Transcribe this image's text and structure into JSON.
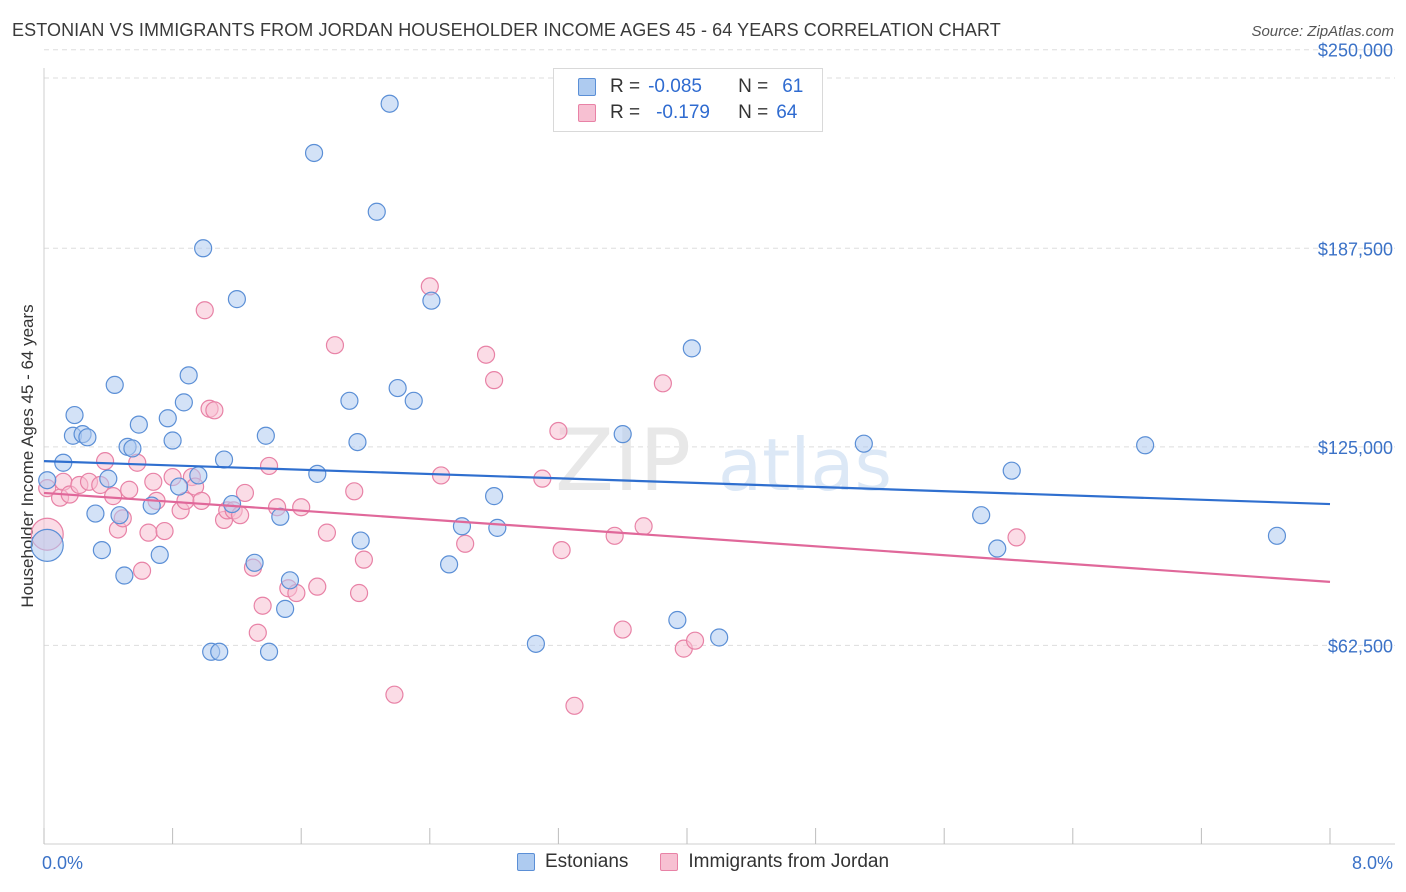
{
  "title": "ESTONIAN VS IMMIGRANTS FROM JORDAN HOUSEHOLDER INCOME AGES 45 - 64 YEARS CORRELATION CHART",
  "source": "Source: ZipAtlas.com",
  "watermark": {
    "zip": "ZIP",
    "atlas": "atlas"
  },
  "legend": {
    "rows": [
      {
        "r_label": "R =",
        "r_value": "-0.085",
        "n_label": "N =",
        "n_value": "61"
      },
      {
        "r_label": "R =",
        "r_value": "-0.179",
        "n_label": "N =",
        "n_value": "64"
      }
    ]
  },
  "colors": {
    "estonians_fill": "#aecbf0",
    "estonians_stroke": "#5b8fd6",
    "estonians_line": "#2f6fcf",
    "jordan_fill": "#f7c0d2",
    "jordan_stroke": "#e882a6",
    "jordan_line": "#e0689a",
    "tick": "#3b72c7",
    "grid": "#dddddd"
  },
  "chart_data": {
    "type": "scatter",
    "ylabel": "Householder Income Ages 45 - 64 years",
    "xlim": [
      0,
      8
    ],
    "ylim": [
      0,
      262500
    ],
    "x_tick_labels": [
      "0.0%",
      "8.0%"
    ],
    "y_ticks": [
      62500,
      125000,
      187500,
      250000
    ],
    "y_tick_labels": [
      "$62,500",
      "$125,000",
      "$187,500",
      "$250,000"
    ],
    "grid": true,
    "legend_position": "top-center",
    "series": [
      {
        "name": "Estonians",
        "r": -0.085,
        "n": 61,
        "trend": [
          [
            0.0,
            120500
          ],
          [
            8.0,
            107000
          ]
        ],
        "points": [
          [
            0.02,
            94000,
            1
          ],
          [
            0.02,
            114500,
            0
          ],
          [
            0.12,
            120000,
            0
          ],
          [
            0.18,
            128500,
            0
          ],
          [
            0.19,
            135000,
            0
          ],
          [
            0.24,
            129000,
            0
          ],
          [
            0.27,
            128000,
            0
          ],
          [
            0.32,
            104000,
            0
          ],
          [
            0.36,
            92500,
            0
          ],
          [
            0.4,
            115000,
            0
          ],
          [
            0.44,
            144500,
            0
          ],
          [
            0.47,
            103500,
            0
          ],
          [
            0.5,
            84500,
            0
          ],
          [
            0.52,
            125000,
            0
          ],
          [
            0.55,
            124500,
            0
          ],
          [
            0.59,
            132000,
            0
          ],
          [
            0.67,
            106500,
            0
          ],
          [
            0.72,
            91000,
            0
          ],
          [
            0.77,
            134000,
            0
          ],
          [
            0.8,
            127000,
            0
          ],
          [
            0.84,
            112500,
            0
          ],
          [
            0.87,
            139000,
            0
          ],
          [
            0.9,
            147500,
            0
          ],
          [
            0.96,
            116000,
            0
          ],
          [
            0.99,
            187500,
            0
          ],
          [
            1.04,
            60500,
            0
          ],
          [
            1.09,
            60500,
            0
          ],
          [
            1.12,
            121000,
            0
          ],
          [
            1.17,
            107000,
            0
          ],
          [
            1.2,
            171500,
            0
          ],
          [
            1.31,
            88500,
            0
          ],
          [
            1.38,
            128500,
            0
          ],
          [
            1.4,
            60500,
            0
          ],
          [
            1.47,
            103000,
            0
          ],
          [
            1.5,
            74000,
            0
          ],
          [
            1.53,
            83000,
            0
          ],
          [
            1.68,
            217500,
            0
          ],
          [
            1.7,
            116500,
            0
          ],
          [
            1.9,
            139500,
            0
          ],
          [
            1.95,
            126500,
            0
          ],
          [
            1.97,
            95500,
            0
          ],
          [
            2.07,
            199000,
            0
          ],
          [
            2.15,
            233000,
            0
          ],
          [
            2.2,
            143500,
            0
          ],
          [
            2.3,
            139500,
            0
          ],
          [
            2.41,
            171000,
            0
          ],
          [
            2.52,
            88000,
            0
          ],
          [
            2.6,
            100000,
            0
          ],
          [
            2.8,
            109500,
            0
          ],
          [
            2.82,
            99500,
            0
          ],
          [
            3.06,
            63000,
            0
          ],
          [
            3.6,
            129000,
            0
          ],
          [
            3.94,
            70500,
            0
          ],
          [
            4.03,
            156000,
            0
          ],
          [
            4.2,
            65000,
            0
          ],
          [
            5.1,
            126000,
            0
          ],
          [
            5.83,
            103500,
            0
          ],
          [
            5.93,
            93000,
            0
          ],
          [
            6.02,
            117500,
            0
          ],
          [
            6.85,
            125500,
            0
          ],
          [
            7.67,
            97000,
            0
          ]
        ]
      },
      {
        "name": "Immigrants from Jordan",
        "r": -0.179,
        "n": 64,
        "trend": [
          [
            0.0,
            110500
          ],
          [
            8.0,
            82500
          ]
        ],
        "points": [
          [
            0.02,
            97500,
            1
          ],
          [
            0.02,
            112000,
            0
          ],
          [
            0.1,
            109000,
            0
          ],
          [
            0.12,
            114000,
            0
          ],
          [
            0.16,
            110000,
            0
          ],
          [
            0.22,
            113000,
            0
          ],
          [
            0.28,
            114000,
            0
          ],
          [
            0.35,
            113000,
            0
          ],
          [
            0.38,
            120500,
            0
          ],
          [
            0.43,
            109500,
            0
          ],
          [
            0.46,
            99000,
            0
          ],
          [
            0.49,
            102500,
            0
          ],
          [
            0.53,
            111500,
            0
          ],
          [
            0.58,
            120000,
            0
          ],
          [
            0.61,
            86000,
            0
          ],
          [
            0.65,
            98000,
            0
          ],
          [
            0.68,
            114000,
            0
          ],
          [
            0.7,
            108000,
            0
          ],
          [
            0.75,
            98500,
            0
          ],
          [
            0.8,
            115500,
            0
          ],
          [
            0.85,
            105000,
            0
          ],
          [
            0.88,
            108000,
            0
          ],
          [
            0.92,
            115500,
            0
          ],
          [
            0.94,
            112500,
            0
          ],
          [
            0.98,
            108000,
            0
          ],
          [
            1.0,
            168000,
            0
          ],
          [
            1.03,
            137000,
            0
          ],
          [
            1.06,
            136500,
            0
          ],
          [
            1.12,
            102000,
            0
          ],
          [
            1.14,
            105000,
            0
          ],
          [
            1.18,
            105000,
            0
          ],
          [
            1.22,
            103500,
            0
          ],
          [
            1.25,
            110500,
            0
          ],
          [
            1.3,
            87000,
            0
          ],
          [
            1.33,
            66500,
            0
          ],
          [
            1.36,
            75000,
            0
          ],
          [
            1.4,
            119000,
            0
          ],
          [
            1.45,
            106000,
            0
          ],
          [
            1.52,
            80500,
            0
          ],
          [
            1.57,
            79000,
            0
          ],
          [
            1.6,
            106000,
            0
          ],
          [
            1.7,
            81000,
            0
          ],
          [
            1.76,
            98000,
            0
          ],
          [
            1.81,
            157000,
            0
          ],
          [
            1.93,
            111000,
            0
          ],
          [
            1.96,
            79000,
            0
          ],
          [
            1.99,
            89500,
            0
          ],
          [
            2.18,
            47000,
            0
          ],
          [
            2.4,
            175500,
            0
          ],
          [
            2.47,
            116000,
            0
          ],
          [
            2.62,
            94500,
            0
          ],
          [
            2.75,
            154000,
            0
          ],
          [
            2.8,
            146000,
            0
          ],
          [
            3.1,
            115000,
            0
          ],
          [
            3.2,
            130000,
            0
          ],
          [
            3.22,
            92500,
            0
          ],
          [
            3.3,
            43500,
            0
          ],
          [
            3.55,
            97000,
            0
          ],
          [
            3.6,
            67500,
            0
          ],
          [
            3.73,
            100000,
            0
          ],
          [
            3.85,
            145000,
            0
          ],
          [
            3.98,
            61500,
            0
          ],
          [
            4.05,
            64000,
            0
          ],
          [
            6.05,
            96500,
            0
          ]
        ]
      }
    ]
  }
}
